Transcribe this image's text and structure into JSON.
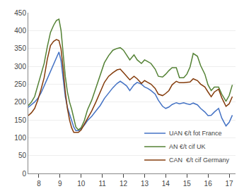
{
  "chart_data": {
    "type": "line",
    "x": [
      7.5,
      7.65,
      7.8,
      7.95,
      8.1,
      8.25,
      8.4,
      8.55,
      8.7,
      8.83,
      8.95,
      9.05,
      9.15,
      9.25,
      9.35,
      9.45,
      9.55,
      9.65,
      9.75,
      9.87,
      10.0,
      10.15,
      10.3,
      10.5,
      10.7,
      10.9,
      11.1,
      11.3,
      11.5,
      11.7,
      11.85,
      12.0,
      12.15,
      12.3,
      12.5,
      12.65,
      12.85,
      13.0,
      13.15,
      13.3,
      13.5,
      13.65,
      13.85,
      14.0,
      14.15,
      14.3,
      14.5,
      14.65,
      14.85,
      15.0,
      15.15,
      15.3,
      15.5,
      15.65,
      15.85,
      16.0,
      16.15,
      16.3,
      16.5,
      16.65,
      16.85,
      17.0,
      17.15
    ],
    "series": [
      {
        "name": "UAN €/t fot France",
        "color": "#4472c4",
        "values": [
          185,
          192,
          200,
          210,
          225,
          245,
          265,
          285,
          305,
          325,
          340,
          315,
          260,
          215,
          185,
          165,
          145,
          130,
          120,
          120,
          125,
          135,
          148,
          160,
          175,
          190,
          210,
          225,
          240,
          252,
          258,
          252,
          245,
          232,
          248,
          255,
          250,
          242,
          238,
          232,
          222,
          205,
          188,
          182,
          186,
          193,
          198,
          195,
          198,
          195,
          193,
          197,
          192,
          182,
          172,
          162,
          163,
          172,
          182,
          155,
          133,
          143,
          163
        ]
      },
      {
        "name": "AN €/t cif UK",
        "color": "#548235",
        "values": [
          190,
          200,
          215,
          245,
          278,
          308,
          355,
          395,
          415,
          428,
          432,
          400,
          335,
          272,
          228,
          200,
          180,
          155,
          130,
          122,
          128,
          148,
          178,
          205,
          240,
          278,
          310,
          330,
          345,
          350,
          352,
          345,
          332,
          318,
          332,
          318,
          308,
          318,
          313,
          308,
          292,
          272,
          270,
          278,
          288,
          296,
          296,
          268,
          268,
          278,
          298,
          336,
          328,
          302,
          278,
          248,
          232,
          242,
          242,
          222,
          202,
          218,
          248
        ]
      },
      {
        "name": "CAN  €/t cif Germany",
        "color": "#843c0c",
        "values": [
          162,
          170,
          182,
          205,
          235,
          268,
          320,
          358,
          370,
          375,
          372,
          348,
          292,
          228,
          182,
          150,
          128,
          115,
          115,
          115,
          122,
          138,
          155,
          175,
          200,
          228,
          255,
          272,
          282,
          290,
          292,
          282,
          272,
          262,
          272,
          265,
          252,
          260,
          255,
          250,
          238,
          222,
          218,
          224,
          232,
          248,
          258,
          254,
          254,
          255,
          256,
          265,
          260,
          250,
          242,
          228,
          215,
          228,
          236,
          212,
          188,
          195,
          215
        ]
      }
    ],
    "xlim": [
      7.5,
      17.3
    ],
    "ylim": [
      0,
      450
    ],
    "xticks": [
      8,
      9,
      10,
      11,
      12,
      13,
      14,
      15,
      16,
      17
    ],
    "yticks": [
      0,
      50,
      100,
      150,
      200,
      250,
      300,
      350,
      400,
      450
    ],
    "grid": "y",
    "legend": "lower right"
  }
}
